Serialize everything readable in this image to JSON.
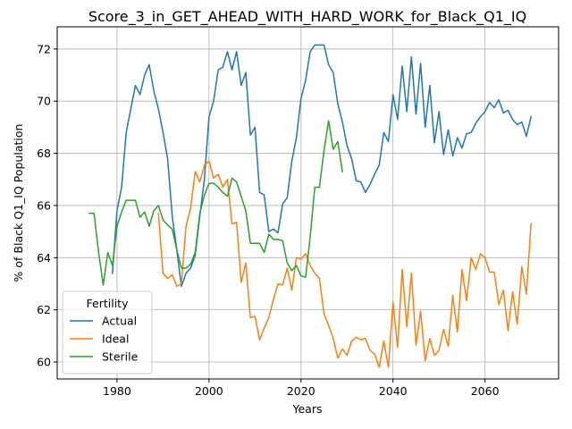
{
  "chart_data": {
    "type": "line",
    "title": "Score_3_in_GET_AHEAD_WITH_HARD_WORK_for_Black_Q1_IQ",
    "xlabel": "Years",
    "ylabel": "% of Black Q1_IQ Population",
    "xlim": [
      1967,
      2076
    ],
    "ylim": [
      59.35,
      72.85
    ],
    "xticks": [
      1980,
      2000,
      2020,
      2040,
      2060
    ],
    "yticks": [
      60,
      62,
      64,
      66,
      68,
      70,
      72
    ],
    "grid": true,
    "legend": {
      "title": "Fertility",
      "position": "lower-left"
    },
    "series": [
      {
        "name": "Actual",
        "color": "#1f77b4",
        "points": [
          [
            1979,
            63.4
          ],
          [
            1980,
            65.8
          ],
          [
            1981,
            66.7
          ],
          [
            1982,
            68.8
          ],
          [
            1983,
            69.7
          ],
          [
            1984,
            70.6
          ],
          [
            1985,
            70.25
          ],
          [
            1986,
            71.0
          ],
          [
            1987,
            71.4
          ],
          [
            1988,
            70.4
          ],
          [
            1989,
            69.7
          ],
          [
            1990,
            68.8
          ],
          [
            1991,
            67.8
          ],
          [
            1992,
            65.6
          ],
          [
            1993,
            64.3
          ],
          [
            1994,
            62.9
          ],
          [
            1995,
            63.4
          ],
          [
            1996,
            63.6
          ],
          [
            1997,
            64.1
          ],
          [
            1998,
            65.6
          ],
          [
            1999,
            67.0
          ],
          [
            2000,
            69.4
          ],
          [
            2001,
            70.0
          ],
          [
            2002,
            71.2
          ],
          [
            2003,
            71.3
          ],
          [
            2004,
            71.9
          ],
          [
            2005,
            71.2
          ],
          [
            2006,
            71.9
          ],
          [
            2007,
            70.6
          ],
          [
            2008,
            71.1
          ],
          [
            2009,
            68.7
          ],
          [
            2010,
            69.0
          ],
          [
            2011,
            66.5
          ],
          [
            2012,
            66.4
          ],
          [
            2013,
            65.0
          ],
          [
            2014,
            65.1
          ],
          [
            2015,
            64.95
          ],
          [
            2016,
            66.05
          ],
          [
            2017,
            66.3
          ],
          [
            2018,
            67.7
          ],
          [
            2019,
            68.6
          ],
          [
            2020,
            70.1
          ],
          [
            2021,
            70.8
          ],
          [
            2022,
            71.9
          ],
          [
            2023,
            72.15
          ],
          [
            2024,
            72.15
          ],
          [
            2025,
            72.15
          ],
          [
            2026,
            71.4
          ],
          [
            2027,
            71.1
          ],
          [
            2028,
            69.9
          ],
          [
            2029,
            69.2
          ],
          [
            2030,
            68.3
          ],
          [
            2031,
            67.8
          ],
          [
            2032,
            66.95
          ],
          [
            2033,
            66.9
          ],
          [
            2034,
            66.5
          ],
          [
            2035,
            66.8
          ],
          [
            2036,
            67.2
          ],
          [
            2037,
            67.55
          ],
          [
            2038,
            68.8
          ],
          [
            2039,
            68.45
          ],
          [
            2040,
            70.25
          ],
          [
            2041,
            69.3
          ],
          [
            2042,
            71.35
          ],
          [
            2043,
            69.6
          ],
          [
            2044,
            71.7
          ],
          [
            2045,
            69.5
          ],
          [
            2046,
            71.45
          ],
          [
            2047,
            69.0
          ],
          [
            2048,
            70.6
          ],
          [
            2049,
            68.4
          ],
          [
            2050,
            69.6
          ],
          [
            2051,
            67.95
          ],
          [
            2052,
            68.9
          ],
          [
            2053,
            67.9
          ],
          [
            2054,
            68.6
          ],
          [
            2055,
            68.2
          ],
          [
            2056,
            68.75
          ],
          [
            2057,
            68.8
          ],
          [
            2058,
            69.15
          ],
          [
            2059,
            69.4
          ],
          [
            2060,
            69.6
          ],
          [
            2061,
            69.95
          ],
          [
            2062,
            69.75
          ],
          [
            2063,
            70.05
          ],
          [
            2064,
            69.55
          ],
          [
            2065,
            69.65
          ],
          [
            2066,
            69.3
          ],
          [
            2067,
            69.1
          ],
          [
            2068,
            69.2
          ],
          [
            2069,
            68.65
          ],
          [
            2070,
            69.4
          ]
        ]
      },
      {
        "name": "Ideal",
        "color": "#ff7f0e",
        "points": [
          [
            1989,
            65.7
          ],
          [
            1990,
            63.4
          ],
          [
            1991,
            63.2
          ],
          [
            1992,
            63.35
          ],
          [
            1993,
            62.9
          ],
          [
            1994,
            63.0
          ],
          [
            1995,
            65.2
          ],
          [
            1996,
            65.9
          ],
          [
            1997,
            67.3
          ],
          [
            1998,
            66.9
          ],
          [
            1999,
            67.55
          ],
          [
            2000,
            67.7
          ],
          [
            2001,
            67.05
          ],
          [
            2002,
            67.2
          ],
          [
            2003,
            66.7
          ],
          [
            2004,
            67.0
          ],
          [
            2005,
            65.3
          ],
          [
            2006,
            65.35
          ],
          [
            2007,
            63.05
          ],
          [
            2008,
            63.8
          ],
          [
            2009,
            61.7
          ],
          [
            2010,
            61.75
          ],
          [
            2011,
            60.85
          ],
          [
            2012,
            61.3
          ],
          [
            2013,
            61.7
          ],
          [
            2014,
            62.4
          ],
          [
            2015,
            63.0
          ],
          [
            2016,
            62.95
          ],
          [
            2017,
            63.6
          ],
          [
            2018,
            62.75
          ],
          [
            2019,
            64.0
          ],
          [
            2020,
            63.95
          ],
          [
            2021,
            64.15
          ],
          [
            2022,
            63.7
          ],
          [
            2023,
            63.4
          ],
          [
            2024,
            63.2
          ],
          [
            2025,
            61.85
          ],
          [
            2026,
            61.4
          ],
          [
            2027,
            60.9
          ],
          [
            2028,
            60.15
          ],
          [
            2029,
            60.5
          ],
          [
            2030,
            60.25
          ],
          [
            2031,
            60.8
          ],
          [
            2032,
            60.95
          ],
          [
            2033,
            60.85
          ],
          [
            2034,
            60.9
          ],
          [
            2035,
            60.45
          ],
          [
            2036,
            60.3
          ],
          [
            2037,
            59.8
          ],
          [
            2038,
            60.8
          ],
          [
            2039,
            59.8
          ],
          [
            2040,
            62.3
          ],
          [
            2041,
            60.55
          ],
          [
            2042,
            63.55
          ],
          [
            2043,
            61.35
          ],
          [
            2044,
            63.4
          ],
          [
            2045,
            60.65
          ],
          [
            2046,
            61.95
          ],
          [
            2047,
            60.05
          ],
          [
            2048,
            60.9
          ],
          [
            2049,
            60.25
          ],
          [
            2050,
            60.45
          ],
          [
            2051,
            61.25
          ],
          [
            2052,
            60.6
          ],
          [
            2053,
            62.55
          ],
          [
            2054,
            61.15
          ],
          [
            2055,
            63.55
          ],
          [
            2056,
            62.35
          ],
          [
            2057,
            64.0
          ],
          [
            2058,
            63.55
          ],
          [
            2059,
            64.15
          ],
          [
            2060,
            64.0
          ],
          [
            2061,
            63.45
          ],
          [
            2062,
            63.45
          ],
          [
            2063,
            62.2
          ],
          [
            2064,
            62.75
          ],
          [
            2065,
            61.2
          ],
          [
            2066,
            62.7
          ],
          [
            2067,
            61.45
          ],
          [
            2068,
            63.65
          ],
          [
            2069,
            62.6
          ],
          [
            2070,
            65.3
          ]
        ]
      },
      {
        "name": "Sterile",
        "color": "#2ca02c",
        "points": [
          [
            1974,
            65.7
          ],
          [
            1975,
            65.7
          ],
          [
            1976,
            64.2
          ],
          [
            1977,
            62.95
          ],
          [
            1978,
            64.2
          ],
          [
            1979,
            63.7
          ],
          [
            1980,
            65.2
          ],
          [
            1981,
            65.75
          ],
          [
            1982,
            66.2
          ],
          [
            1983,
            66.2
          ],
          [
            1984,
            66.2
          ],
          [
            1985,
            65.55
          ],
          [
            1986,
            65.75
          ],
          [
            1987,
            65.2
          ],
          [
            1988,
            65.8
          ],
          [
            1989,
            66.0
          ],
          [
            1990,
            65.45
          ],
          [
            1991,
            65.25
          ],
          [
            1992,
            65.1
          ],
          [
            1993,
            64.3
          ],
          [
            1994,
            63.6
          ],
          [
            1995,
            63.6
          ],
          [
            1996,
            63.75
          ],
          [
            1997,
            64.2
          ],
          [
            1998,
            65.7
          ],
          [
            1999,
            66.4
          ],
          [
            2000,
            66.85
          ],
          [
            2001,
            66.85
          ],
          [
            2002,
            66.7
          ],
          [
            2003,
            66.5
          ],
          [
            2004,
            66.35
          ],
          [
            2005,
            67.05
          ],
          [
            2006,
            66.9
          ],
          [
            2007,
            66.35
          ],
          [
            2008,
            65.8
          ],
          [
            2009,
            64.55
          ],
          [
            2010,
            64.55
          ],
          [
            2011,
            64.55
          ],
          [
            2012,
            64.2
          ],
          [
            2013,
            64.9
          ],
          [
            2014,
            64.7
          ],
          [
            2015,
            64.7
          ],
          [
            2016,
            64.65
          ],
          [
            2017,
            63.8
          ],
          [
            2018,
            63.5
          ],
          [
            2019,
            63.7
          ],
          [
            2020,
            63.3
          ],
          [
            2021,
            63.25
          ],
          [
            2022,
            64.8
          ],
          [
            2023,
            66.7
          ],
          [
            2024,
            66.7
          ],
          [
            2025,
            68.1
          ],
          [
            2026,
            69.25
          ],
          [
            2027,
            68.15
          ],
          [
            2028,
            68.45
          ],
          [
            2029,
            67.3
          ]
        ]
      }
    ]
  }
}
